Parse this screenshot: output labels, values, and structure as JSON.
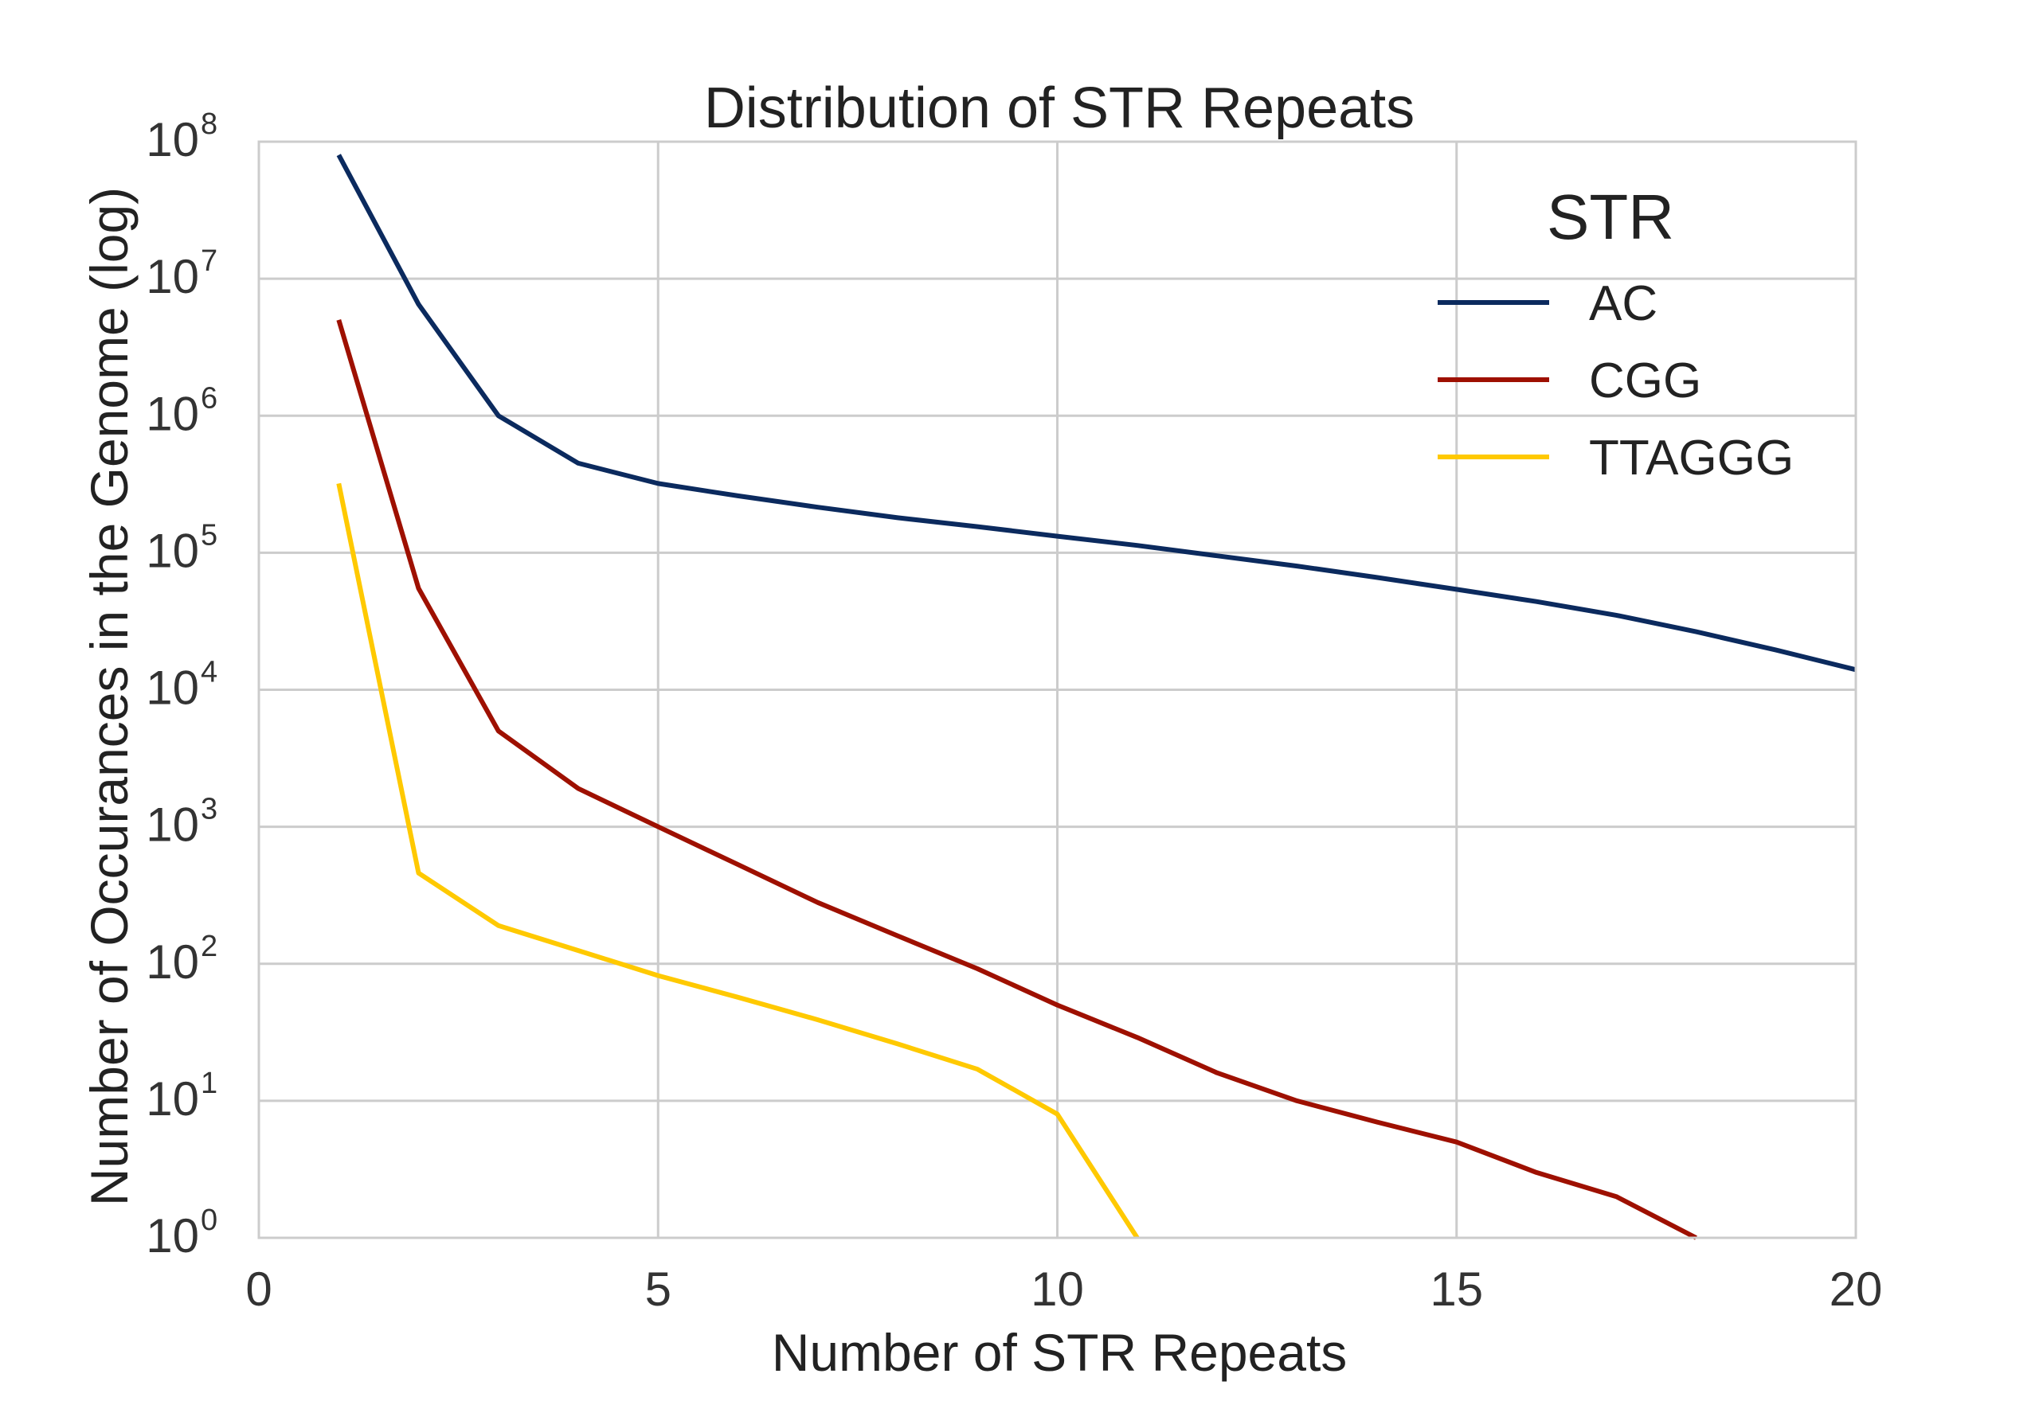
{
  "chart_data": {
    "type": "line",
    "title": "Distribution of STR Repeats",
    "xlabel": "Number of STR Repeats",
    "ylabel": "Number of Occurances in the Genome (log)",
    "xlim": [
      0,
      20
    ],
    "ylim": [
      1,
      100000000
    ],
    "yscale": "log",
    "grid": true,
    "x_ticks": [
      0,
      5,
      10,
      15,
      20
    ],
    "y_ticks": [
      {
        "base": "10",
        "exp": "0",
        "value": 1
      },
      {
        "base": "10",
        "exp": "1",
        "value": 10
      },
      {
        "base": "10",
        "exp": "2",
        "value": 100
      },
      {
        "base": "10",
        "exp": "3",
        "value": 1000
      },
      {
        "base": "10",
        "exp": "4",
        "value": 10000
      },
      {
        "base": "10",
        "exp": "5",
        "value": 100000
      },
      {
        "base": "10",
        "exp": "6",
        "value": 1000000
      },
      {
        "base": "10",
        "exp": "7",
        "value": 10000000
      },
      {
        "base": "10",
        "exp": "8",
        "value": 100000000
      }
    ],
    "legend": {
      "title": "STR",
      "position": "top-right"
    },
    "series": [
      {
        "name": "AC",
        "color": "#0b2a5e",
        "x": [
          1,
          2,
          3,
          4,
          5,
          6,
          7,
          8,
          9,
          10,
          11,
          12,
          13,
          14,
          15,
          16,
          17,
          18,
          19,
          20
        ],
        "y": [
          80000000,
          6500000,
          1000000,
          450000,
          320000,
          260000,
          215000,
          180000,
          155000,
          132000,
          113000,
          95000,
          80000,
          66000,
          54000,
          44000,
          35000,
          26500,
          19500,
          14000
        ]
      },
      {
        "name": "CGG",
        "color": "#9e1000",
        "x": [
          1,
          2,
          3,
          4,
          5,
          6,
          7,
          8,
          9,
          10,
          11,
          12,
          13,
          14,
          15,
          16,
          17,
          18
        ],
        "y": [
          5000000,
          55000,
          5000,
          1900,
          1000,
          530,
          280,
          160,
          92,
          50,
          29,
          16,
          10,
          7,
          5,
          3,
          2,
          1
        ]
      },
      {
        "name": "TTAGGG",
        "color": "#ffc900",
        "x": [
          1,
          2,
          3,
          4,
          5,
          6,
          7,
          8,
          9,
          10,
          11
        ],
        "y": [
          320000,
          460,
          190,
          125,
          82,
          57,
          39,
          26,
          17,
          8,
          1
        ]
      }
    ]
  }
}
